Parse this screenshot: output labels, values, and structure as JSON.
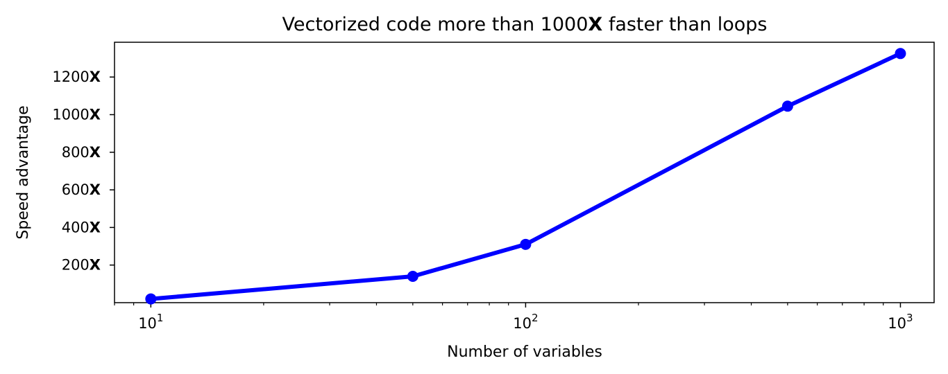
{
  "chart_data": {
    "type": "line",
    "title_prefix": "Vectorized code more than 1000",
    "title_bold": "X",
    "title_suffix": " faster than loops",
    "xlabel": "Number of variables",
    "ylabel": "Speed advantage",
    "xscale": "log",
    "xlim": [
      8.0,
      1230
    ],
    "ylim": [
      0,
      1385
    ],
    "grid": false,
    "line_color": "#0000ff",
    "series": [
      {
        "name": "speed advantage",
        "x": [
          10,
          50,
          100,
          500,
          1000
        ],
        "y": [
          20,
          140,
          310,
          1045,
          1325
        ]
      }
    ],
    "yticks": [
      {
        "value": 200,
        "num": "200",
        "suffix": "X"
      },
      {
        "value": 400,
        "num": "400",
        "suffix": "X"
      },
      {
        "value": 600,
        "num": "600",
        "suffix": "X"
      },
      {
        "value": 800,
        "num": "800",
        "suffix": "X"
      },
      {
        "value": 1000,
        "num": "1000",
        "suffix": "X"
      },
      {
        "value": 1200,
        "num": "1200",
        "suffix": "X"
      }
    ],
    "xticks": [
      {
        "value": 10,
        "base": "10",
        "exp": "1"
      },
      {
        "value": 100,
        "base": "10",
        "exp": "2"
      },
      {
        "value": 1000,
        "base": "10",
        "exp": "3"
      }
    ]
  }
}
